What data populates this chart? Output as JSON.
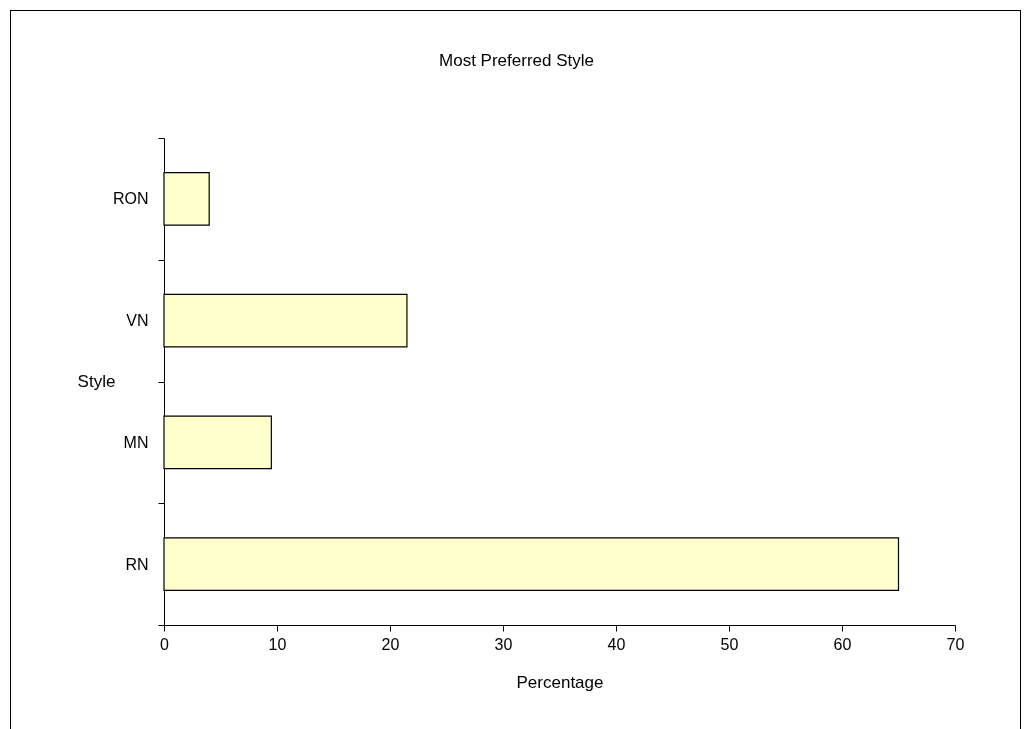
{
  "chart_data": {
    "type": "bar",
    "orientation": "horizontal",
    "title": "Most Preferred Style",
    "xlabel": "Percentage",
    "ylabel": "Style",
    "categories": [
      "RON",
      "VN",
      "MN",
      "RN"
    ],
    "values": [
      4,
      21.5,
      9.5,
      65
    ],
    "color": "#ffffcc",
    "xlim": [
      0,
      70
    ],
    "xticks": [
      0,
      10,
      20,
      30,
      40,
      50,
      60,
      70
    ],
    "grid": false
  }
}
